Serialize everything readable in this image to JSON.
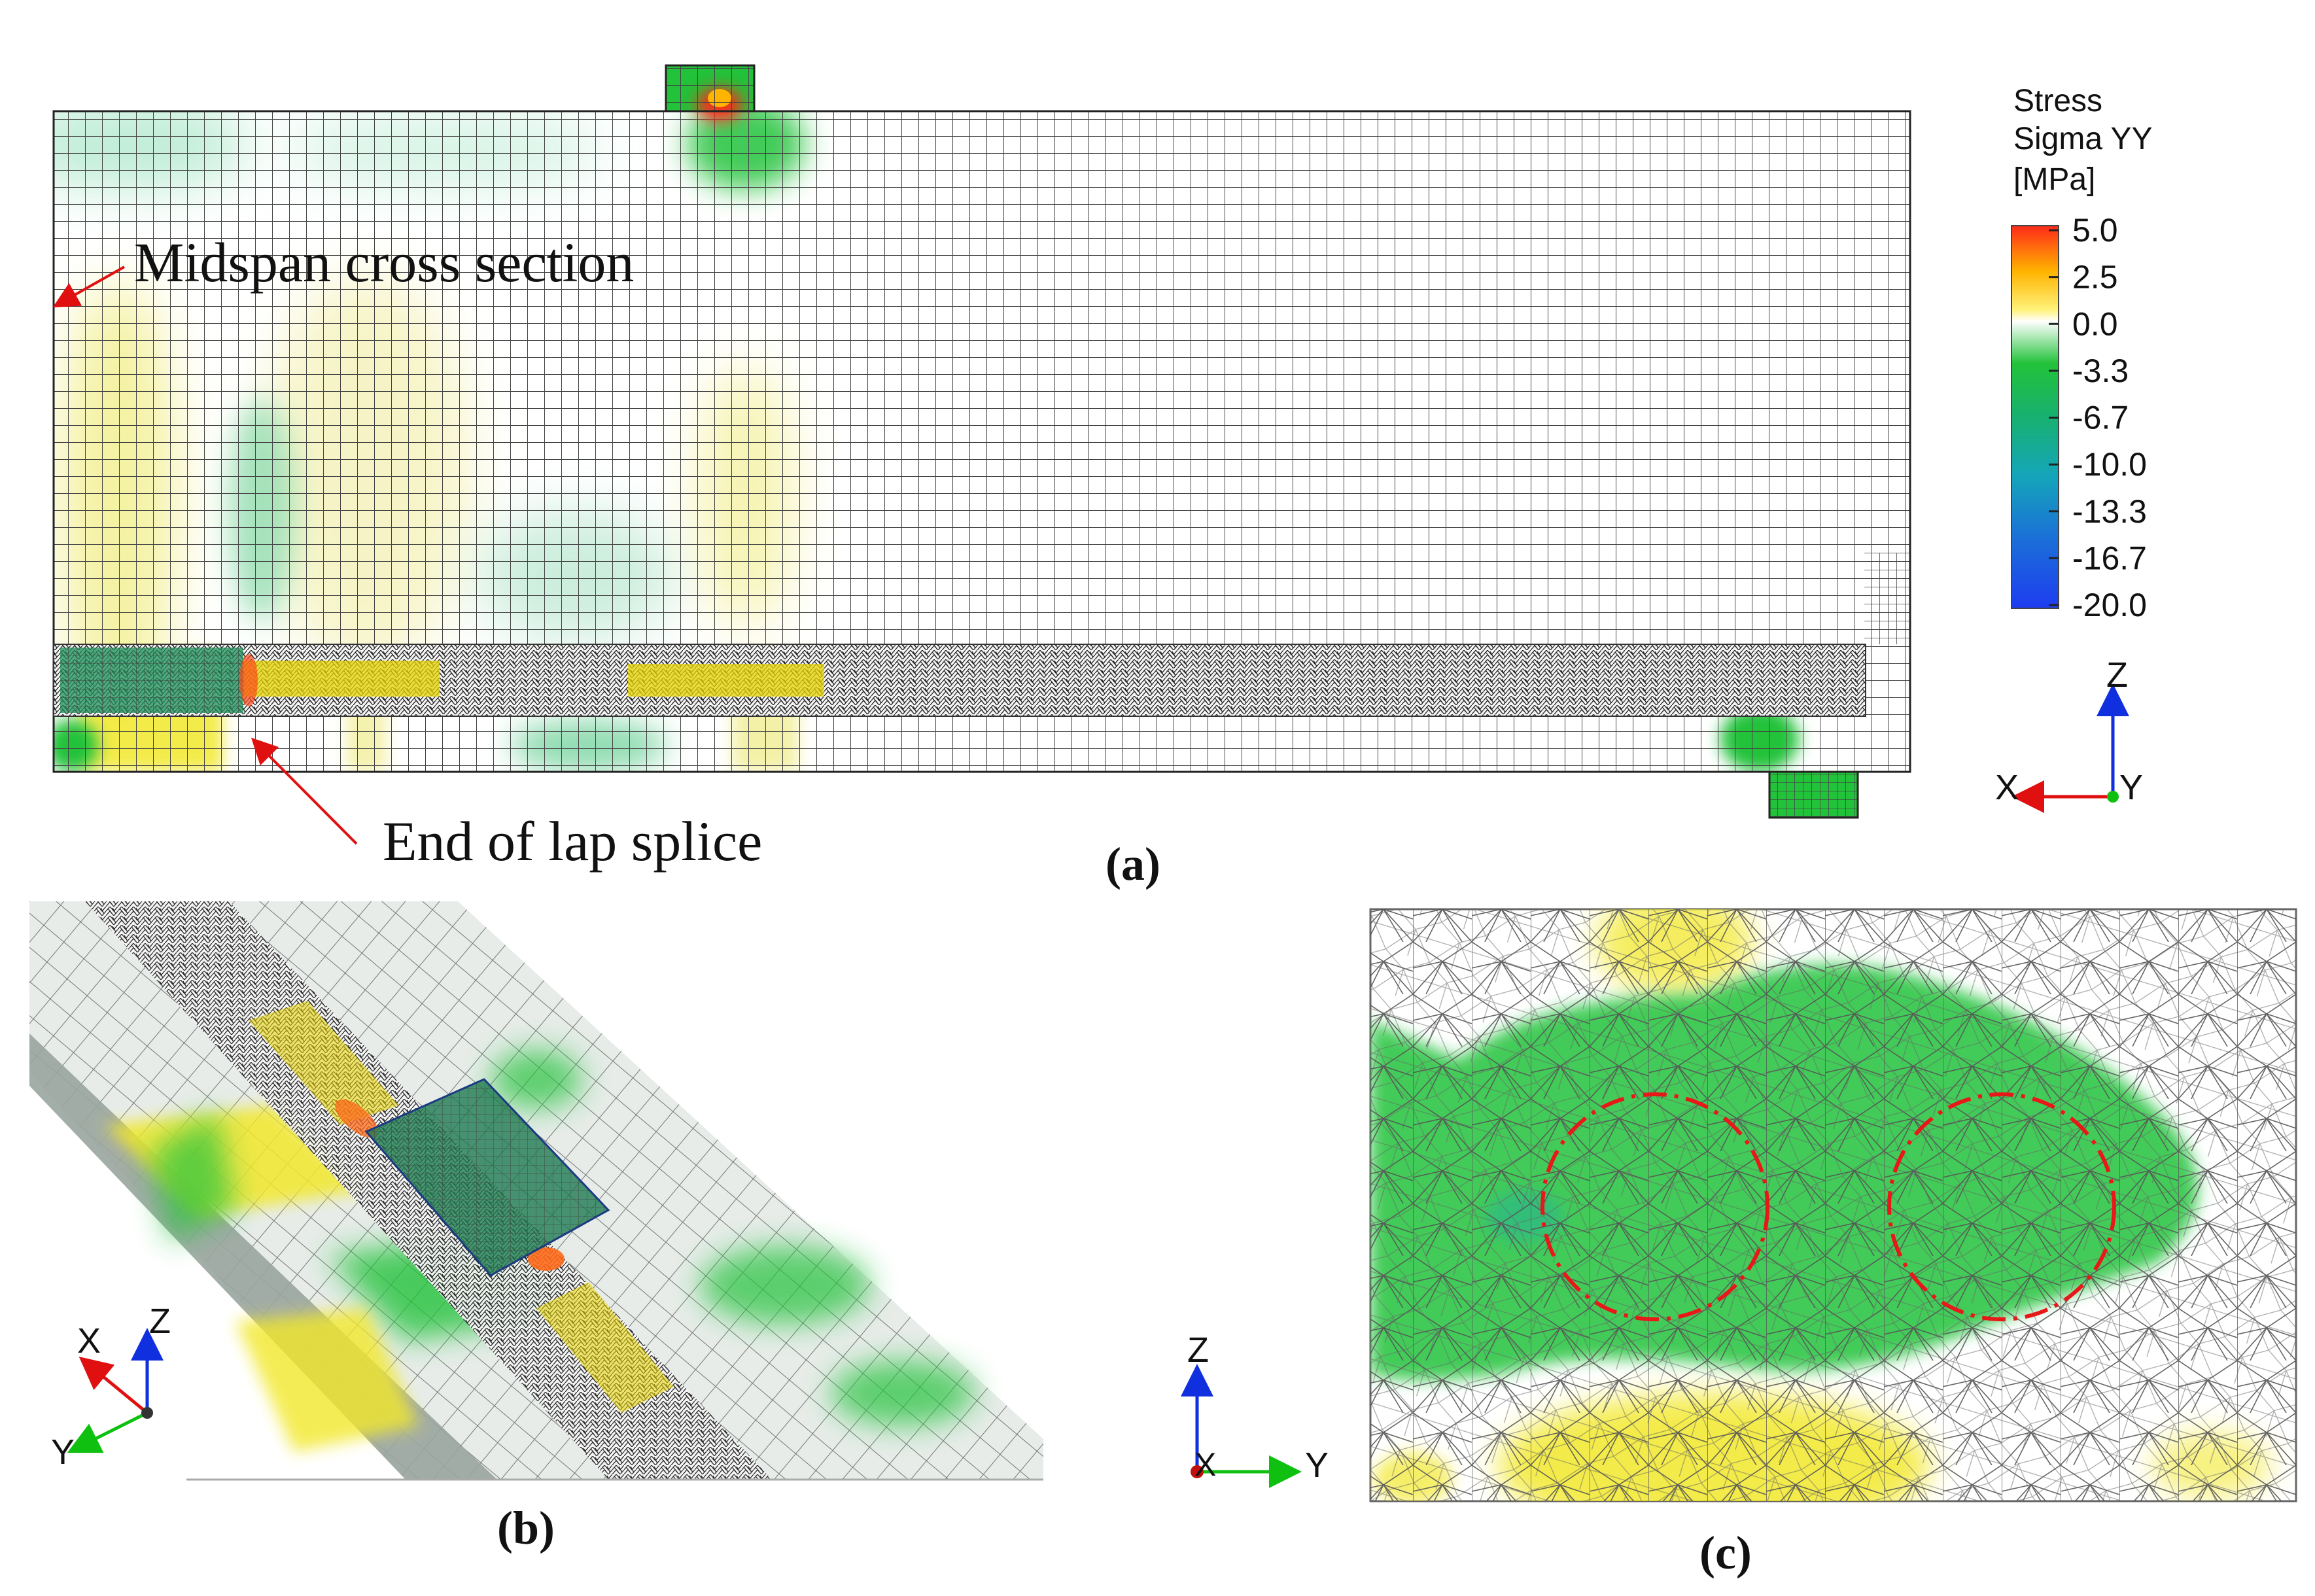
{
  "panel_a": {
    "caption": "(a)",
    "annotation_midspan": "Midspan cross section",
    "annotation_lap_splice": "End of lap splice",
    "legend": {
      "title_lines": [
        "Stress",
        "Sigma YY",
        "[MPa]"
      ],
      "ticks": [
        "5.0",
        "2.5",
        "0.0",
        "-3.3",
        "-6.7",
        "-10.0",
        "-13.3",
        "-16.7",
        "-20.0"
      ],
      "colors": [
        "#ff2a1a",
        "#ffb400",
        "#fff27a",
        "#ffffff",
        "#22c23a",
        "#18b070",
        "#14a6b8",
        "#1b6fd8",
        "#1e3cf0"
      ]
    },
    "axes": {
      "vertical": "Z",
      "horizontal": "X",
      "out_of_plane": "Y"
    }
  },
  "panel_b": {
    "caption": "(b)",
    "axes": {
      "a": "X",
      "b": "Z",
      "c": "Y"
    }
  },
  "panel_c": {
    "caption": "(c)",
    "axes": {
      "vertical": "Z",
      "horizontal": "Y",
      "out_of_plane": "X"
    }
  },
  "colors": {
    "compression_green": "#22c23a",
    "tension_yellow": "#f2e82a",
    "peak_red": "#ff2a1a",
    "mesh_line": "#333333",
    "axis_red": "#e01010",
    "axis_green": "#10c010",
    "axis_blue": "#1030e0",
    "dashdot_circle": "#e81818"
  }
}
